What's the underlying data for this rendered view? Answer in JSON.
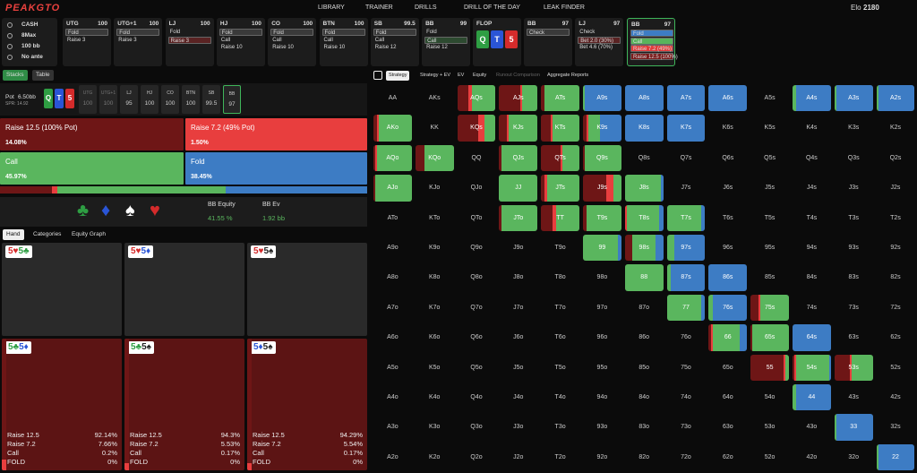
{
  "header": {
    "logo": "PEAKGTO",
    "nav": [
      "LIBRARY",
      "TRAINER",
      "DRILLS",
      "DRILL OF THE DAY",
      "LEAK FINDER"
    ],
    "elo_label": "Elo",
    "elo": "2180"
  },
  "game_info": [
    "CASH",
    "8Max",
    "100 bb",
    "No ante"
  ],
  "action_history": [
    {
      "position": "UTG",
      "stack": "100",
      "actions": [
        "Fold",
        "Raise 3"
      ],
      "selected": 0
    },
    {
      "position": "UTG+1",
      "stack": "100",
      "actions": [
        "Fold",
        "Raise 3"
      ],
      "selected": 0
    },
    {
      "position": "LJ",
      "stack": "100",
      "actions": [
        "Fold",
        "Raise 3"
      ],
      "selected": 1
    },
    {
      "position": "HJ",
      "stack": "100",
      "actions": [
        "Fold",
        "Call",
        "Raise 10"
      ],
      "selected": 0
    },
    {
      "position": "CO",
      "stack": "100",
      "actions": [
        "Fold",
        "Call",
        "Raise 10"
      ],
      "selected": 0
    },
    {
      "position": "BTN",
      "stack": "100",
      "actions": [
        "Fold",
        "Call",
        "Raise 10"
      ],
      "selected": 0
    },
    {
      "position": "SB",
      "stack": "99.5",
      "actions": [
        "Fold",
        "Call",
        "Raise 12"
      ],
      "selected": 0
    },
    {
      "position": "BB",
      "stack": "99",
      "actions": [
        "Fold",
        "Call",
        "Raise 12"
      ],
      "selected": 1
    }
  ],
  "flop": {
    "label": "FLOP",
    "cards": [
      {
        "rank": "Q",
        "color": "#2e9e43"
      },
      {
        "rank": "T",
        "color": "#2a55d6"
      },
      {
        "rank": "5",
        "color": "#d42b2b"
      }
    ]
  },
  "postflop_history": [
    {
      "position": "BB",
      "stack": "97",
      "actions": [
        "Check"
      ],
      "selected": 0
    },
    {
      "position": "LJ",
      "stack": "97",
      "actions": [
        "Check",
        "Bet 2.0 (30%)",
        "Bet 4.6 (70%)"
      ],
      "selected": 1
    }
  ],
  "current": {
    "position": "BB",
    "stack": "97",
    "actions": [
      "Fold",
      "Call",
      "Raise 7.2 (49%)",
      "Raise 12.5 (100%)"
    ],
    "action_colors": [
      "#3d7cc4",
      "#58b45c",
      "#e23c3c",
      "#7a1c1c"
    ]
  },
  "view_tabs": [
    "Stacks",
    "Table"
  ],
  "pot": {
    "label": "Pot",
    "value": "6.50bb",
    "spr": "SPR: 14.92"
  },
  "stacks": [
    {
      "position": "UTG",
      "stack": "100"
    },
    {
      "position": "UTG+1",
      "stack": "100"
    },
    {
      "position": "LJ",
      "stack": "95"
    },
    {
      "position": "HJ",
      "stack": "100"
    },
    {
      "position": "CO",
      "stack": "100"
    },
    {
      "position": "BTN",
      "stack": "100"
    },
    {
      "position": "SB",
      "stack": "99.5"
    },
    {
      "position": "BB",
      "stack": "97"
    }
  ],
  "strategy": {
    "actions": [
      {
        "name": "Raise 12.5 (100% Pot)",
        "value": 14.08,
        "label": "14.08%",
        "color": "#6e1616"
      },
      {
        "name": "Raise 7.2 (49% Pot)",
        "value": 1.5,
        "label": "1.50%",
        "color": "#e83e3e"
      },
      {
        "name": "Call",
        "value": 45.97,
        "label": "45.97%",
        "color": "#5ab65e"
      },
      {
        "name": "Fold",
        "value": 38.45,
        "label": "38.45%",
        "color": "#3d7cc4"
      }
    ]
  },
  "equity": {
    "suits": [
      "♣",
      "♦",
      "♠",
      "♥"
    ],
    "equity_label": "BB Equity",
    "equity": "41.55 %",
    "ev_label": "BB Ev",
    "ev": "1.92 bb"
  },
  "hand_tabs": [
    "Hand",
    "Categories",
    "Equity Graph"
  ],
  "combos": [
    {
      "cards": [
        {
          "text": "5♥",
          "color": "#d42b2b"
        },
        {
          "text": "5♣",
          "color": "#2e9e43"
        }
      ]
    },
    {
      "cards": [
        {
          "text": "5♥",
          "color": "#d42b2b"
        },
        {
          "text": "5♦",
          "color": "#2a55d6"
        }
      ]
    },
    {
      "cards": [
        {
          "text": "5♥",
          "color": "#d42b2b"
        },
        {
          "text": "5♠",
          "color": "#222222"
        }
      ]
    },
    {
      "cards": [
        {
          "text": "5♣",
          "color": "#2e9e43"
        },
        {
          "text": "5♦",
          "color": "#2a55d6"
        }
      ],
      "stats": [
        {
          "action": "Raise 12.5",
          "value": 92.14,
          "label": "92.14%"
        },
        {
          "action": "Raise 7.2",
          "value": 7.66,
          "label": "7.66%"
        },
        {
          "action": "Call",
          "value": 0.2,
          "label": "0.2%"
        },
        {
          "action": "FOLD",
          "value": 0,
          "label": "0%"
        }
      ]
    },
    {
      "cards": [
        {
          "text": "5♣",
          "color": "#2e9e43"
        },
        {
          "text": "5♠",
          "color": "#222222"
        }
      ],
      "stats": [
        {
          "action": "Raise 12.5",
          "value": 94.3,
          "label": "94.3%"
        },
        {
          "action": "Raise 7.2",
          "value": 5.53,
          "label": "5.53%"
        },
        {
          "action": "Call",
          "value": 0.17,
          "label": "0.17%"
        },
        {
          "action": "FOLD",
          "value": 0,
          "label": "0%"
        }
      ]
    },
    {
      "cards": [
        {
          "text": "5♦",
          "color": "#2a55d6"
        },
        {
          "text": "5♠",
          "color": "#222222"
        }
      ],
      "stats": [
        {
          "action": "Raise 12.5",
          "value": 94.29,
          "label": "94.29%"
        },
        {
          "action": "Raise 7.2",
          "value": 5.54,
          "label": "5.54%"
        },
        {
          "action": "Call",
          "value": 0.17,
          "label": "0.17%"
        },
        {
          "action": "FOLD",
          "value": 0,
          "label": "0%"
        }
      ]
    }
  ],
  "grid_tabs": [
    "Strategy",
    "Strategy + EV",
    "EV",
    "Equity",
    "Runout Comparison",
    "Aggregate Reports"
  ],
  "grid": [
    [
      {
        "label": "AA"
      },
      {
        "label": "AKs"
      },
      {
        "label": "AQs",
        "mix": [
          30,
          8,
          62,
          0
        ]
      },
      {
        "label": "AJs",
        "mix": [
          55,
          5,
          40,
          0
        ]
      },
      {
        "label": "ATs",
        "mix": [
          10,
          0,
          90,
          0
        ]
      },
      {
        "label": "A9s",
        "mix": [
          0,
          0,
          5,
          95
        ]
      },
      {
        "label": "A8s",
        "mix": [
          0,
          0,
          0,
          100
        ]
      },
      {
        "label": "A7s",
        "mix": [
          0,
          0,
          0,
          100
        ]
      },
      {
        "label": "A6s",
        "mix": [
          0,
          0,
          0,
          100
        ]
      },
      {
        "label": "A5s"
      },
      {
        "label": "A4s",
        "mix": [
          0,
          0,
          10,
          90
        ]
      },
      {
        "label": "A3s",
        "mix": [
          0,
          0,
          5,
          95
        ]
      },
      {
        "label": "A2s",
        "mix": [
          0,
          0,
          5,
          95
        ]
      }
    ],
    [
      {
        "label": "AKo",
        "mix": [
          10,
          5,
          85,
          0
        ]
      },
      {
        "label": "KK"
      },
      {
        "label": "KQs",
        "mix": [
          55,
          15,
          30,
          0
        ]
      },
      {
        "label": "KJs",
        "mix": [
          20,
          5,
          75,
          0
        ]
      },
      {
        "label": "KTs",
        "mix": [
          25,
          5,
          70,
          0
        ]
      },
      {
        "label": "K9s",
        "mix": [
          10,
          5,
          30,
          55
        ]
      },
      {
        "label": "K8s",
        "mix": [
          0,
          0,
          0,
          100
        ]
      },
      {
        "label": "K7s",
        "mix": [
          0,
          0,
          0,
          100
        ]
      },
      {
        "label": "K6s"
      },
      {
        "label": "K5s"
      },
      {
        "label": "K4s"
      },
      {
        "label": "K3s"
      },
      {
        "label": "K2s"
      }
    ],
    [
      {
        "label": "AQo",
        "mix": [
          5,
          5,
          90,
          0
        ]
      },
      {
        "label": "KQo",
        "mix": [
          25,
          0,
          75,
          0
        ]
      },
      {
        "label": "QQ"
      },
      {
        "label": "QJs",
        "mix": [
          5,
          0,
          95,
          0
        ]
      },
      {
        "label": "QTs",
        "mix": [
          50,
          5,
          45,
          0
        ]
      },
      {
        "label": "Q9s",
        "mix": [
          5,
          0,
          95,
          0
        ]
      },
      {
        "label": "Q8s"
      },
      {
        "label": "Q7s"
      },
      {
        "label": "Q6s"
      },
      {
        "label": "Q5s"
      },
      {
        "label": "Q4s"
      },
      {
        "label": "Q3s"
      },
      {
        "label": "Q2s"
      }
    ],
    [
      {
        "label": "AJo",
        "mix": [
          5,
          0,
          95,
          0
        ]
      },
      {
        "label": "KJo"
      },
      {
        "label": "QJo"
      },
      {
        "label": "JJ",
        "mix": [
          0,
          0,
          100,
          0
        ]
      },
      {
        "label": "JTs",
        "mix": [
          10,
          5,
          85,
          0
        ]
      },
      {
        "label": "J9s",
        "mix": [
          60,
          20,
          20,
          0
        ]
      },
      {
        "label": "J8s",
        "mix": [
          0,
          0,
          95,
          5
        ]
      },
      {
        "label": "J7s"
      },
      {
        "label": "J6s"
      },
      {
        "label": "J5s"
      },
      {
        "label": "J4s"
      },
      {
        "label": "J3s"
      },
      {
        "label": "J2s"
      }
    ],
    [
      {
        "label": "ATo"
      },
      {
        "label": "KTo"
      },
      {
        "label": "QTo"
      },
      {
        "label": "JTo",
        "mix": [
          5,
          0,
          95,
          0
        ]
      },
      {
        "label": "TT",
        "mix": [
          30,
          10,
          60,
          0
        ]
      },
      {
        "label": "T9s",
        "mix": [
          10,
          0,
          90,
          0
        ]
      },
      {
        "label": "T8s",
        "mix": [
          0,
          5,
          85,
          10
        ]
      },
      {
        "label": "T7s",
        "mix": [
          0,
          0,
          90,
          10
        ]
      },
      {
        "label": "T6s"
      },
      {
        "label": "T5s"
      },
      {
        "label": "T4s"
      },
      {
        "label": "T3s"
      },
      {
        "label": "T2s"
      }
    ],
    [
      {
        "label": "A9o"
      },
      {
        "label": "K9o"
      },
      {
        "label": "Q9o"
      },
      {
        "label": "J9o"
      },
      {
        "label": "T9o"
      },
      {
        "label": "99",
        "mix": [
          0,
          0,
          90,
          10
        ]
      },
      {
        "label": "98s",
        "mix": [
          20,
          0,
          60,
          20
        ]
      },
      {
        "label": "97s",
        "mix": [
          0,
          0,
          20,
          80
        ]
      },
      {
        "label": "96s"
      },
      {
        "label": "95s"
      },
      {
        "label": "94s"
      },
      {
        "label": "93s"
      },
      {
        "label": "92s"
      }
    ],
    [
      {
        "label": "A8o"
      },
      {
        "label": "K8o"
      },
      {
        "label": "Q8o"
      },
      {
        "label": "J8o"
      },
      {
        "label": "T8o"
      },
      {
        "label": "98o"
      },
      {
        "label": "88",
        "mix": [
          0,
          0,
          100,
          0
        ]
      },
      {
        "label": "87s",
        "mix": [
          0,
          0,
          10,
          90
        ]
      },
      {
        "label": "86s",
        "mix": [
          0,
          0,
          0,
          100
        ]
      },
      {
        "label": "85s"
      },
      {
        "label": "84s"
      },
      {
        "label": "83s"
      },
      {
        "label": "82s"
      }
    ],
    [
      {
        "label": "A7o"
      },
      {
        "label": "K7o"
      },
      {
        "label": "Q7o"
      },
      {
        "label": "J7o"
      },
      {
        "label": "T7o"
      },
      {
        "label": "97o"
      },
      {
        "label": "87o"
      },
      {
        "label": "77",
        "mix": [
          0,
          0,
          90,
          10
        ]
      },
      {
        "label": "76s",
        "mix": [
          0,
          0,
          10,
          90
        ]
      },
      {
        "label": "75s",
        "mix": [
          20,
          5,
          75,
          0
        ]
      },
      {
        "label": "74s"
      },
      {
        "label": "73s"
      },
      {
        "label": "72s"
      }
    ],
    [
      {
        "label": "A6o"
      },
      {
        "label": "K6o"
      },
      {
        "label": "Q6o"
      },
      {
        "label": "J6o"
      },
      {
        "label": "T6o"
      },
      {
        "label": "96o"
      },
      {
        "label": "86o"
      },
      {
        "label": "76o"
      },
      {
        "label": "66",
        "mix": [
          5,
          5,
          70,
          20
        ]
      },
      {
        "label": "65s",
        "mix": [
          5,
          0,
          95,
          0
        ]
      },
      {
        "label": "64s",
        "mix": [
          0,
          0,
          0,
          100
        ]
      },
      {
        "label": "63s"
      },
      {
        "label": "62s"
      }
    ],
    [
      {
        "label": "A5o"
      },
      {
        "label": "K5o"
      },
      {
        "label": "Q5o"
      },
      {
        "label": "J5o"
      },
      {
        "label": "T5o"
      },
      {
        "label": "95o"
      },
      {
        "label": "85o"
      },
      {
        "label": "75o"
      },
      {
        "label": "65o"
      },
      {
        "label": "55",
        "mix": [
          85,
          5,
          10,
          0
        ]
      },
      {
        "label": "54s",
        "mix": [
          5,
          5,
          85,
          5
        ]
      },
      {
        "label": "53s",
        "mix": [
          40,
          5,
          55,
          0
        ]
      },
      {
        "label": "52s"
      }
    ],
    [
      {
        "label": "A4o"
      },
      {
        "label": "K4o"
      },
      {
        "label": "Q4o"
      },
      {
        "label": "J4o"
      },
      {
        "label": "T4o"
      },
      {
        "label": "94o"
      },
      {
        "label": "84o"
      },
      {
        "label": "74o"
      },
      {
        "label": "64o"
      },
      {
        "label": "54o"
      },
      {
        "label": "44",
        "mix": [
          0,
          0,
          10,
          90
        ]
      },
      {
        "label": "43s"
      },
      {
        "label": "42s"
      }
    ],
    [
      {
        "label": "A3o"
      },
      {
        "label": "K3o"
      },
      {
        "label": "Q3o"
      },
      {
        "label": "J3o"
      },
      {
        "label": "T3o"
      },
      {
        "label": "93o"
      },
      {
        "label": "83o"
      },
      {
        "label": "73o"
      },
      {
        "label": "63o"
      },
      {
        "label": "53o"
      },
      {
        "label": "43o"
      },
      {
        "label": "33",
        "mix": [
          0,
          0,
          5,
          95
        ]
      },
      {
        "label": "32s"
      }
    ],
    [
      {
        "label": "A2o"
      },
      {
        "label": "K2o"
      },
      {
        "label": "Q2o"
      },
      {
        "label": "J2o"
      },
      {
        "label": "T2o"
      },
      {
        "label": "92o"
      },
      {
        "label": "82o"
      },
      {
        "label": "72o"
      },
      {
        "label": "62o"
      },
      {
        "label": "52o"
      },
      {
        "label": "42o"
      },
      {
        "label": "32o"
      },
      {
        "label": "22",
        "mix": [
          0,
          0,
          5,
          95
        ]
      }
    ]
  ]
}
